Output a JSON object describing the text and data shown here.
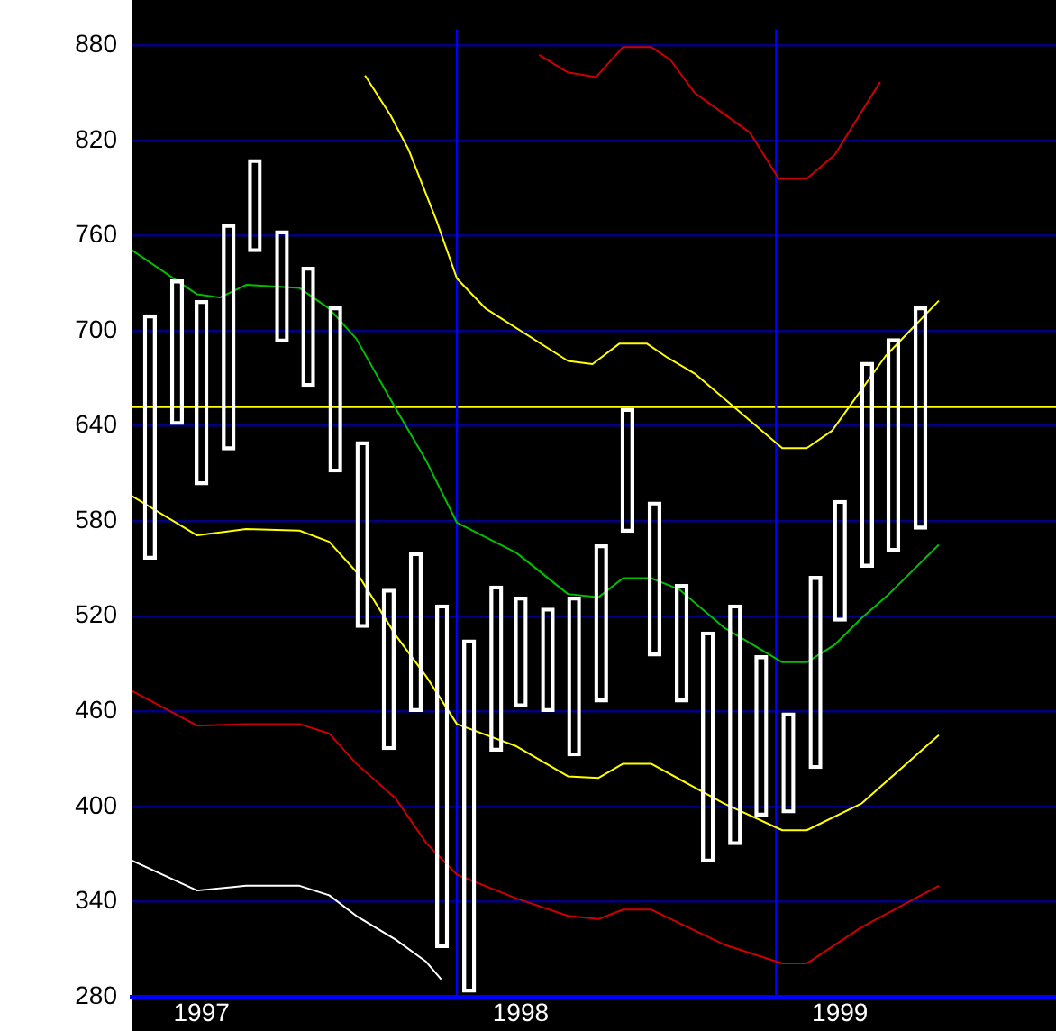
{
  "chart_data": {
    "type": "bar",
    "x": [
      "1997-01-15",
      "1997-02-15",
      "1997-03-15",
      "1997-04-15",
      "1997-05-15",
      "1997-06-15",
      "1997-07-15",
      "1997-08-15",
      "1997-09-15",
      "1997-10-15",
      "1997-11-15",
      "1997-12-15",
      "1998-01-15",
      "1998-02-15",
      "1998-03-15",
      "1998-04-15",
      "1998-05-15",
      "1998-06-15",
      "1998-07-15",
      "1998-08-15",
      "1998-09-15",
      "1998-10-15",
      "1998-11-15",
      "1998-12-15",
      "1999-01-15",
      "1999-02-15",
      "1999-03-15",
      "1999-04-15",
      "1999-05-15",
      "1999-06-15"
    ],
    "xlim": [
      "1996-12-25",
      "1999-11-17"
    ],
    "xticks": [
      {
        "value": "1997-03-15",
        "label": "1997"
      },
      {
        "value": "1998-03-15",
        "label": "1998"
      },
      {
        "value": "1999-03-15",
        "label": "1999"
      }
    ],
    "ylim": [
      280,
      890
    ],
    "yticks": [
      280,
      340,
      400,
      460,
      520,
      580,
      640,
      700,
      760,
      820,
      880
    ],
    "grid": "y",
    "series": [
      {
        "color": "#ffffff",
        "base": [
          556,
          641,
          603,
          625,
          750,
          693,
          665,
          611,
          513,
          436,
          460,
          311,
          283,
          435,
          463,
          460,
          432,
          466,
          573,
          495,
          466,
          365,
          376,
          394,
          396,
          424,
          517,
          551,
          561,
          575
        ],
        "values": [
          154,
          91,
          116,
          142,
          58,
          70,
          75,
          104,
          117,
          101,
          100,
          216,
          222,
          104,
          69,
          65,
          100,
          99,
          78,
          97,
          74,
          145,
          151,
          101,
          63,
          121,
          76,
          129,
          134,
          140
        ]
      },
      {
        "type": "line",
        "color": "#cc0000",
        "x": [
          "1998-04-05",
          "1998-05-08",
          "1998-06-09",
          "1998-07-10",
          "1998-08-11",
          "1998-09-02",
          "1998-09-30",
          "1998-12-02",
          "1999-01-04",
          "1999-02-05",
          "1999-03-09",
          "1999-04-30"
        ],
        "values": [
          874,
          863,
          860,
          879,
          879,
          871,
          850,
          825,
          796,
          796,
          811,
          857
        ]
      },
      {
        "type": "line",
        "color": "#ffff00",
        "x": [
          "1997-09-18",
          "1997-10-17",
          "1997-11-07",
          "1997-12-09",
          "1998-01-01",
          "1998-02-03",
          "1998-05-08",
          "1998-06-05",
          "1998-07-06",
          "1998-08-06",
          "1998-08-30",
          "1998-09-30",
          "1999-01-08",
          "1999-02-05",
          "1999-03-06",
          "1999-05-06",
          "1999-07-06"
        ],
        "values": [
          861,
          836,
          814,
          769,
          733,
          714,
          681,
          679,
          692,
          692,
          683,
          673,
          626,
          626,
          637,
          684,
          719
        ]
      },
      {
        "type": "line",
        "color": "#00c000",
        "x": [
          "1996-12-25",
          "1997-03-10",
          "1997-04-05",
          "1997-05-05",
          "1997-07-05",
          "1997-08-08",
          "1997-09-08",
          "1997-10-23",
          "1997-11-27",
          "1998-01-01",
          "1998-03-10",
          "1998-05-08",
          "1998-06-12",
          "1998-07-10",
          "1998-08-11",
          "1998-09-12",
          "1998-11-02",
          "1999-01-08",
          "1999-02-05",
          "1999-03-09",
          "1999-04-09",
          "1999-05-10",
          "1999-07-06"
        ],
        "values": [
          751,
          723,
          721,
          729,
          727,
          714,
          695,
          651,
          618,
          579,
          560,
          534,
          532,
          544,
          544,
          537,
          513,
          491,
          491,
          502,
          519,
          534,
          565
        ]
      },
      {
        "type": "line",
        "color": "#ffff00",
        "x": [
          "1996-12-25",
          "1997-03-10",
          "1997-05-05",
          "1997-07-05",
          "1997-08-08",
          "1997-09-08",
          "1997-10-23",
          "1997-11-27",
          "1998-01-01",
          "1998-03-10",
          "1998-05-08",
          "1998-06-12",
          "1998-07-10",
          "1998-08-11",
          "1998-11-02",
          "1999-01-08",
          "1999-02-05",
          "1999-04-09",
          "1999-07-06"
        ],
        "values": [
          596,
          571,
          575,
          574,
          567,
          548,
          508,
          482,
          452,
          438,
          419,
          418,
          427,
          427,
          402,
          385,
          385,
          402,
          445
        ]
      },
      {
        "type": "line",
        "color": "#cc0000",
        "x": [
          "1996-12-25",
          "1997-03-10",
          "1997-05-05",
          "1997-07-05",
          "1997-08-08",
          "1997-09-08",
          "1997-10-23",
          "1997-11-27",
          "1998-01-01",
          "1998-03-10",
          "1998-05-08",
          "1998-06-12",
          "1998-07-10",
          "1998-08-11",
          "1998-11-02",
          "1999-01-08",
          "1999-02-05",
          "1999-04-09",
          "1999-07-06"
        ],
        "values": [
          473,
          451,
          452,
          452,
          446,
          427,
          405,
          377,
          357,
          342,
          331,
          329,
          335,
          335,
          313,
          301,
          301,
          324,
          350
        ]
      },
      {
        "type": "line",
        "color": "#ffffff",
        "x": [
          "1996-12-25",
          "1997-03-10",
          "1997-05-05",
          "1997-07-05",
          "1997-08-08",
          "1997-09-08",
          "1997-10-23",
          "1997-11-27",
          "1997-12-14"
        ],
        "values": [
          366,
          347,
          350,
          350,
          344,
          331,
          316,
          302,
          291
        ]
      }
    ],
    "ref_lines": [
      {
        "axis": "y",
        "value": 652,
        "color": "#ffff00"
      },
      {
        "axis": "x",
        "value": "1998-01-01",
        "color": "#0000ff"
      },
      {
        "axis": "x",
        "value": "1999-01-01",
        "color": "#0000ff"
      }
    ]
  }
}
